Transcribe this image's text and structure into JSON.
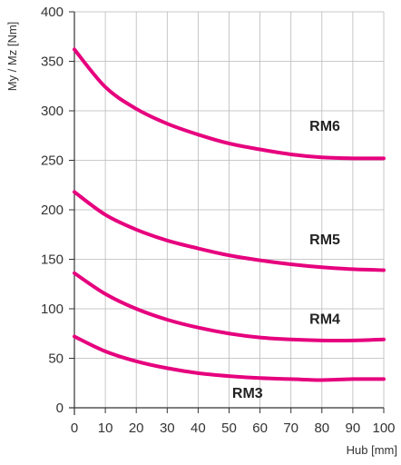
{
  "chart_data": {
    "type": "line",
    "xlabel": "Hub [mm]",
    "ylabel": "My / Mz [Nm]",
    "xlim": [
      0,
      100
    ],
    "ylim": [
      0,
      400
    ],
    "xticks": [
      0,
      10,
      20,
      30,
      40,
      50,
      60,
      70,
      80,
      90,
      100
    ],
    "yticks": [
      0,
      50,
      100,
      150,
      200,
      250,
      300,
      350,
      400
    ],
    "grid": true,
    "line_color": "#e6007e",
    "x": [
      0,
      10,
      20,
      30,
      40,
      50,
      60,
      70,
      80,
      90,
      100
    ],
    "series": [
      {
        "name": "RM6",
        "values": [
          362,
          324,
          302,
          287,
          276,
          267,
          261,
          256,
          253,
          252,
          252
        ]
      },
      {
        "name": "RM5",
        "values": [
          218,
          195,
          180,
          169,
          161,
          154,
          149,
          145,
          142,
          140,
          139
        ]
      },
      {
        "name": "RM4",
        "values": [
          136,
          115,
          100,
          89,
          81,
          75,
          71,
          69,
          68,
          68,
          69
        ]
      },
      {
        "name": "RM3",
        "values": [
          72,
          57,
          47,
          40,
          35,
          32,
          30,
          29,
          28,
          29,
          29
        ]
      }
    ],
    "annotations": [
      {
        "text": "RM6",
        "x": 76,
        "y": 280
      },
      {
        "text": "RM5",
        "x": 76,
        "y": 165
      },
      {
        "text": "RM4",
        "x": 76,
        "y": 85
      },
      {
        "text": "RM3",
        "x": 51,
        "y": 10
      }
    ]
  }
}
